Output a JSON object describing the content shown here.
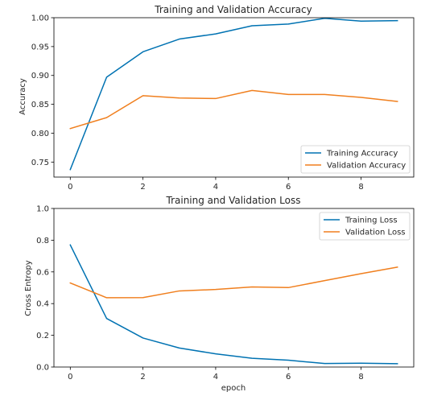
{
  "chart_data": [
    {
      "type": "line",
      "title": "Training and Validation Accuracy",
      "xlabel": "",
      "ylabel": "Accuracy",
      "x": [
        0,
        1,
        2,
        3,
        4,
        5,
        6,
        7,
        8,
        9
      ],
      "xticks": [
        0,
        2,
        4,
        6,
        8
      ],
      "xtick_labels": [
        "0",
        "2",
        "4",
        "6",
        "8"
      ],
      "yticks": [
        0.75,
        0.8,
        0.85,
        0.9,
        0.95,
        1.0
      ],
      "ytick_labels": [
        "0.75",
        "0.80",
        "0.85",
        "0.90",
        "0.95",
        "1.00"
      ],
      "xlim": [
        -0.45,
        9.45
      ],
      "ylim": [
        0.724,
        1.0
      ],
      "grid": false,
      "legend_position": "lower-right",
      "series": [
        {
          "name": "Training Accuracy",
          "color": "#0072b2",
          "values": [
            0.737,
            0.897,
            0.941,
            0.963,
            0.972,
            0.986,
            0.989,
            0.999,
            0.994,
            0.995
          ]
        },
        {
          "name": "Validation Accuracy",
          "color": "#f07f1e",
          "values": [
            0.808,
            0.827,
            0.865,
            0.861,
            0.86,
            0.874,
            0.867,
            0.867,
            0.862,
            0.855
          ]
        }
      ]
    },
    {
      "type": "line",
      "title": "Training and Validation Loss",
      "xlabel": "epoch",
      "ylabel": "Cross Entropy",
      "x": [
        0,
        1,
        2,
        3,
        4,
        5,
        6,
        7,
        8,
        9
      ],
      "xticks": [
        0,
        2,
        4,
        6,
        8
      ],
      "xtick_labels": [
        "0",
        "2",
        "4",
        "6",
        "8"
      ],
      "yticks": [
        0.0,
        0.2,
        0.4,
        0.6,
        0.8,
        1.0
      ],
      "ytick_labels": [
        "0.0",
        "0.2",
        "0.4",
        "0.6",
        "0.8",
        "1.0"
      ],
      "xlim": [
        -0.45,
        9.45
      ],
      "ylim": [
        0.0,
        1.0
      ],
      "grid": false,
      "legend_position": "upper-right",
      "series": [
        {
          "name": "Training Loss",
          "color": "#0072b2",
          "values": [
            0.77,
            0.306,
            0.183,
            0.12,
            0.083,
            0.055,
            0.043,
            0.022,
            0.024,
            0.021
          ]
        },
        {
          "name": "Validation Loss",
          "color": "#f07f1e",
          "values": [
            0.53,
            0.437,
            0.438,
            0.48,
            0.489,
            0.505,
            0.501,
            0.545,
            0.589,
            0.63
          ]
        }
      ]
    }
  ]
}
